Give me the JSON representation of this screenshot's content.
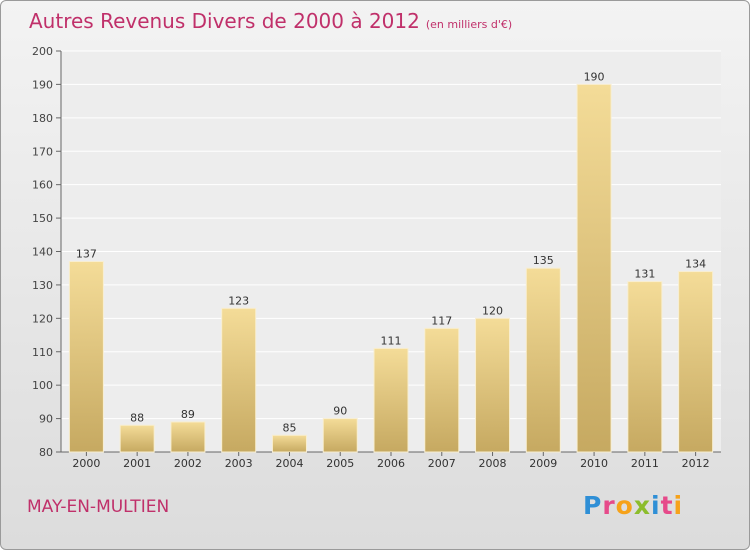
{
  "title": {
    "main": "Autres Revenus Divers de 2000 à 2012",
    "sub": "(en milliers d'€)"
  },
  "commune": "MAY-EN-MULTIEN",
  "logo": {
    "text": "Proxiti",
    "colors": [
      "#2f8fd6",
      "#e64a8a",
      "#f6a21a",
      "#8cbd2c",
      "#2f8fd6",
      "#e64a8a",
      "#f6a21a"
    ]
  },
  "chart_data": {
    "type": "bar",
    "title": "Autres Revenus Divers de 2000 à 2012",
    "subtitle": "(en milliers d'€)",
    "xlabel": "",
    "ylabel": "",
    "categories": [
      "2000",
      "2001",
      "2002",
      "2003",
      "2004",
      "2005",
      "2006",
      "2007",
      "2008",
      "2009",
      "2010",
      "2011",
      "2012"
    ],
    "values": [
      137,
      88,
      89,
      123,
      85,
      90,
      111,
      117,
      120,
      135,
      190,
      131,
      134
    ],
    "data_labels": [
      "137",
      "88",
      "89",
      "123",
      "85",
      "90",
      "111",
      "117",
      "120",
      "135",
      "190",
      "131",
      "134"
    ],
    "ylim": [
      80,
      200
    ],
    "yticks": [
      80,
      90,
      100,
      110,
      120,
      130,
      140,
      150,
      160,
      170,
      180,
      190,
      200
    ],
    "ytick_labels": [
      "80",
      "90",
      "100",
      "110",
      "120",
      "130",
      "140",
      "150",
      "160",
      "170",
      "180",
      "190",
      "200"
    ],
    "grid": true,
    "legend": "none",
    "bar_color": "#e3c57e"
  }
}
